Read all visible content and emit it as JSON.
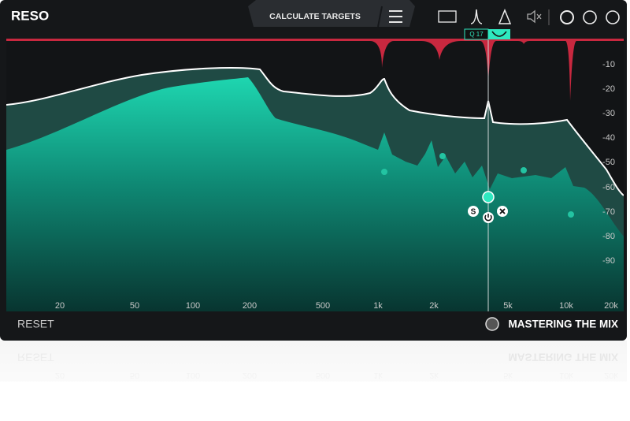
{
  "header": {
    "title": "RESO",
    "button": "CALCULATE TARGETS"
  },
  "node": {
    "q_label": "Q 17",
    "solo": "S"
  },
  "freq_axis": {
    "labels": [
      "20",
      "50",
      "100",
      "200",
      "500",
      "1k",
      "2k",
      "5k",
      "10k",
      "20k"
    ]
  },
  "db_axis": {
    "labels": [
      "-10",
      "-20",
      "-30",
      "-40",
      "-50",
      "-60",
      "-70",
      "-80",
      "-90"
    ]
  },
  "footer": {
    "reset": "RESET",
    "brand": "MASTERING THE MIX"
  }
}
